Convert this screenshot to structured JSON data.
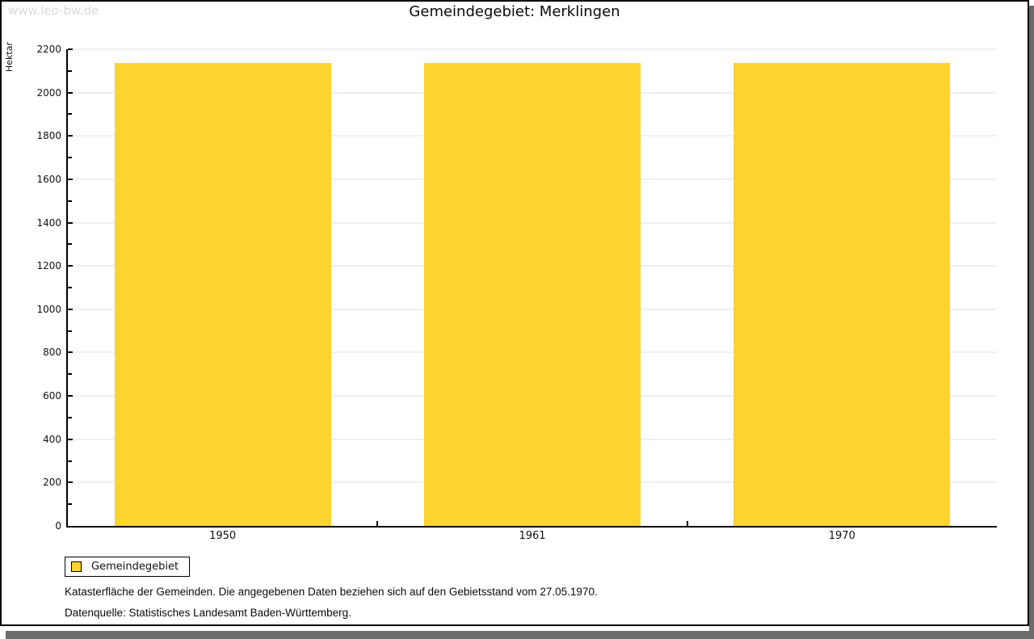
{
  "page": {
    "watermark": "www.leo-bw.de",
    "title": "Gemeindegebiet: Merklingen"
  },
  "chart_data": {
    "type": "bar",
    "title": "Gemeindegebiet: Merklingen",
    "categories": [
      "1950",
      "1961",
      "1970"
    ],
    "series": [
      {
        "name": "Gemeindegebiet",
        "color": "#FCD42D",
        "values": [
          2138,
          2138,
          2138
        ]
      }
    ],
    "xlabel": "",
    "ylabel": "Hektar",
    "ylim": [
      0,
      2200
    ],
    "ytick_major_step": 200,
    "ytick_minor_step": 100,
    "grid": true,
    "gridline_color": "#dfdfdf",
    "bar_width_fraction": 0.7,
    "legend_position": "bottom-left"
  },
  "legend": {
    "items": [
      {
        "label": "Gemeindegebiet",
        "color": "#FCD42D"
      }
    ]
  },
  "footer": {
    "note": "Katasterfläche der Gemeinden. Die angegebenen Daten beziehen sich auf den Gebietsstand vom 27.05.1970.",
    "source": "Datenquelle: Statistisches Landesamt Baden-Württemberg."
  }
}
